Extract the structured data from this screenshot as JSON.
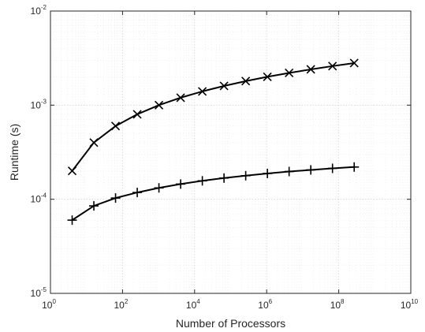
{
  "chart_data": {
    "type": "line",
    "xlabel": "Number of Processors",
    "ylabel": "Runtime (s)",
    "xscale": "log",
    "yscale": "log",
    "xlim": [
      1,
      10000000000
    ],
    "ylim": [
      1e-05,
      0.01
    ],
    "grid": "on",
    "x_ticks": [
      {
        "base": "10",
        "exp": "0",
        "value": 1
      },
      {
        "base": "10",
        "exp": "2",
        "value": 100
      },
      {
        "base": "10",
        "exp": "4",
        "value": 10000
      },
      {
        "base": "10",
        "exp": "6",
        "value": 1000000
      },
      {
        "base": "10",
        "exp": "8",
        "value": 100000000
      },
      {
        "base": "10",
        "exp": "10",
        "value": 10000000000
      }
    ],
    "y_ticks": [
      {
        "base": "10",
        "exp": "-5",
        "value": 1e-05
      },
      {
        "base": "10",
        "exp": "-4",
        "value": 0.0001
      },
      {
        "base": "10",
        "exp": "-3",
        "value": 0.001
      },
      {
        "base": "10",
        "exp": "-2",
        "value": 0.01
      }
    ],
    "x": [
      4,
      16,
      64,
      256,
      1024,
      4096,
      16384,
      65536,
      262144,
      1048576,
      4194304,
      16777216,
      67108864,
      268435456
    ],
    "series": [
      {
        "marker": "x",
        "color": "#000000",
        "values": [
          0.0002,
          0.0004,
          0.0006,
          0.0008,
          0.001,
          0.0012,
          0.0014,
          0.0016,
          0.0018,
          0.002,
          0.0022,
          0.0024,
          0.0026,
          0.0028
        ]
      },
      {
        "marker": "+",
        "color": "#000000",
        "values": [
          6e-05,
          8.5e-05,
          0.000103,
          0.000118,
          0.000132,
          0.000145,
          0.000157,
          0.000168,
          0.000178,
          0.000188,
          0.000197,
          0.000205,
          0.000213,
          0.00022
        ]
      }
    ]
  }
}
